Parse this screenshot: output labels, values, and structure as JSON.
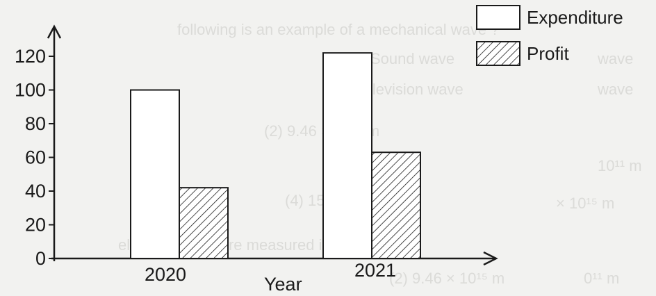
{
  "chart_data": {
    "type": "bar",
    "categories": [
      "2020",
      "2021"
    ],
    "series": [
      {
        "name": "Expenditure",
        "values": [
          100,
          122
        ],
        "pattern": "empty"
      },
      {
        "name": "Profit",
        "values": [
          42,
          63
        ],
        "pattern": "hatched"
      }
    ],
    "xlabel": "Year",
    "ylabel": "",
    "yticks": [
      0,
      20,
      40,
      60,
      80,
      100,
      120
    ],
    "ylim": [
      0,
      135
    ],
    "grid": false,
    "legend": "top-right",
    "colors": {
      "bar_fill": "#ffffff",
      "bar_stroke": "#1a1a1a",
      "hatch": "#1a1a1a",
      "background": "#f2f2f0"
    }
  }
}
